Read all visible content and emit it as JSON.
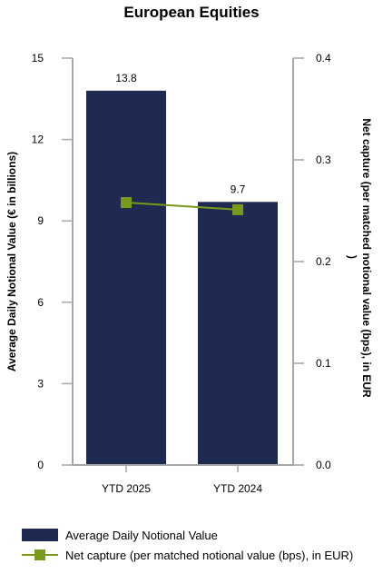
{
  "chart_data": {
    "type": "bar+line",
    "title": "European Equities",
    "categories": [
      "YTD 2025",
      "YTD 2024"
    ],
    "series": [
      {
        "name": "Average Daily Notional Value",
        "type": "bar",
        "axis": "left",
        "values": [
          13.8,
          9.7
        ],
        "color": "#1f2a52"
      },
      {
        "name": "Net capture (per matched notional value (bps), in EUR)",
        "type": "line",
        "axis": "right",
        "values": [
          0.258,
          0.251
        ],
        "color": "#7a9a1c"
      }
    ],
    "data_labels": [
      "13.8",
      "9.7"
    ],
    "ylabel_left": "Average Daily Notional Value (€ in billions)",
    "ylabel_right_line1": "Net capture (per matched notional value (bps), in EUR",
    "ylabel_right_line2": ")",
    "ylim_left": [
      0,
      15
    ],
    "yticks_left": [
      "0",
      "3",
      "6",
      "9",
      "12",
      "15"
    ],
    "ylim_right": [
      0,
      0.4
    ],
    "yticks_right": [
      "0.0",
      "0.1",
      "0.2",
      "0.3",
      "0.4"
    ],
    "legend_position": "bottom-left",
    "grid": false
  },
  "legend": {
    "bar_label": "Average Daily Notional Value",
    "line_label": "Net capture (per matched notional value (bps), in EUR)"
  },
  "colors": {
    "bar": "#1f2a52",
    "line": "#7a9a1c",
    "axis": "#a6a6a6"
  }
}
